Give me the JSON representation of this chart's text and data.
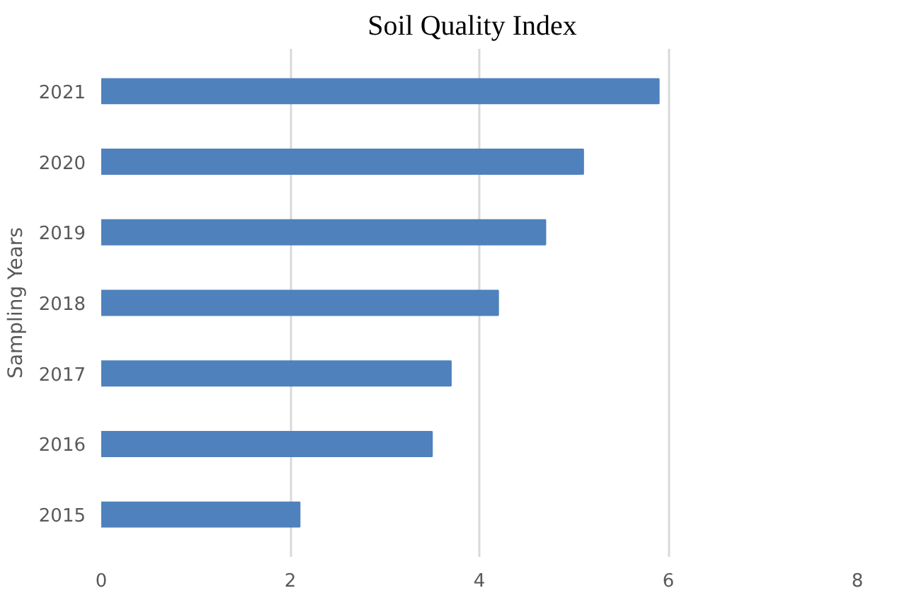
{
  "chart_data": {
    "type": "bar",
    "orientation": "horizontal",
    "title": "Soil  Quality  Index",
    "ylabel": "Sampling Years",
    "categories": [
      "2021",
      "2020",
      "2019",
      "2018",
      "2017",
      "2016",
      "2015"
    ],
    "values": [
      5.9,
      5.1,
      4.7,
      4.2,
      3.7,
      3.5,
      2.1
    ],
    "color": "#4f81bd",
    "xlim": [
      0,
      8
    ],
    "xticks": [
      0,
      2,
      4,
      6,
      8
    ],
    "grid": "x"
  }
}
